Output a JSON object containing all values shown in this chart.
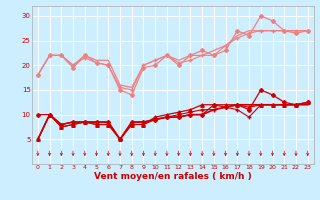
{
  "title": "",
  "xlabel": "Vent moyen/en rafales ( km/h )",
  "x": [
    0,
    1,
    2,
    3,
    4,
    5,
    6,
    7,
    8,
    9,
    10,
    11,
    12,
    13,
    14,
    15,
    16,
    17,
    18,
    19,
    20,
    21,
    22,
    23
  ],
  "series": [
    {
      "values": [
        18,
        22,
        22,
        19.5,
        22,
        20.5,
        20,
        15,
        14,
        19.5,
        20,
        22,
        20,
        22,
        23,
        22,
        23,
        27,
        26,
        30,
        29,
        27,
        26.5,
        27
      ],
      "color": "#f08080",
      "marker": "D",
      "markersize": 2,
      "linewidth": 0.9
    },
    {
      "values": [
        18,
        22,
        22,
        20,
        22,
        21,
        21,
        16,
        15.5,
        20,
        21,
        22,
        21,
        22,
        22,
        23,
        24,
        26,
        27,
        27,
        27,
        27,
        27,
        27
      ],
      "color": "#f08080",
      "marker": null,
      "markersize": 0,
      "linewidth": 0.9
    },
    {
      "values": [
        18,
        22,
        22,
        20,
        21.5,
        20.5,
        20,
        15.5,
        15,
        20,
        21,
        22,
        20.5,
        21,
        22,
        22,
        24,
        25.5,
        26.5,
        27,
        27,
        27,
        27,
        27
      ],
      "color": "#f08080",
      "marker": "+",
      "markersize": 3,
      "linewidth": 0.8
    },
    {
      "values": [
        5,
        10,
        8,
        8.5,
        8.5,
        8.5,
        8.5,
        5,
        8.5,
        8.5,
        9,
        9.5,
        9.5,
        10,
        10,
        11,
        11.5,
        12,
        12,
        12,
        12,
        12,
        12,
        12
      ],
      "color": "#cc0000",
      "marker": null,
      "markersize": 0,
      "linewidth": 1.2
    },
    {
      "values": [
        10,
        10,
        8,
        8.5,
        8.5,
        8.5,
        8.5,
        5,
        8.5,
        8.5,
        9,
        9.5,
        9.5,
        10,
        10,
        12,
        11.5,
        12,
        11,
        15,
        14,
        12.5,
        12,
        12.5
      ],
      "color": "#cc0000",
      "marker": "D",
      "markersize": 2,
      "linewidth": 0.9
    },
    {
      "values": [
        5,
        10,
        7.5,
        8,
        8.5,
        8,
        8,
        5,
        8,
        8,
        9.5,
        10,
        10.5,
        11,
        12,
        12,
        12,
        12,
        11.5,
        12,
        12,
        12,
        12,
        12.5
      ],
      "color": "#cc0000",
      "marker": "^",
      "markersize": 2.5,
      "linewidth": 0.9
    },
    {
      "values": [
        5,
        10,
        7.5,
        8,
        8.5,
        8,
        8,
        5,
        8,
        8,
        9,
        9.5,
        10,
        10.5,
        11,
        11,
        11.5,
        11,
        9.5,
        12,
        12,
        12,
        12,
        12.5
      ],
      "color": "#cc0000",
      "marker": "+",
      "markersize": 3,
      "linewidth": 0.8
    }
  ],
  "ylim": [
    0,
    32
  ],
  "yticks": [
    5,
    10,
    15,
    20,
    25,
    30
  ],
  "xlim": [
    -0.5,
    23.5
  ],
  "xticks": [
    0,
    1,
    2,
    3,
    4,
    5,
    6,
    7,
    8,
    9,
    10,
    11,
    12,
    13,
    14,
    15,
    16,
    17,
    18,
    19,
    20,
    21,
    22,
    23
  ],
  "bg_color": "#cceeff",
  "grid_color": "#ffffff",
  "tick_color": "#cc0000",
  "label_color": "#cc0000"
}
